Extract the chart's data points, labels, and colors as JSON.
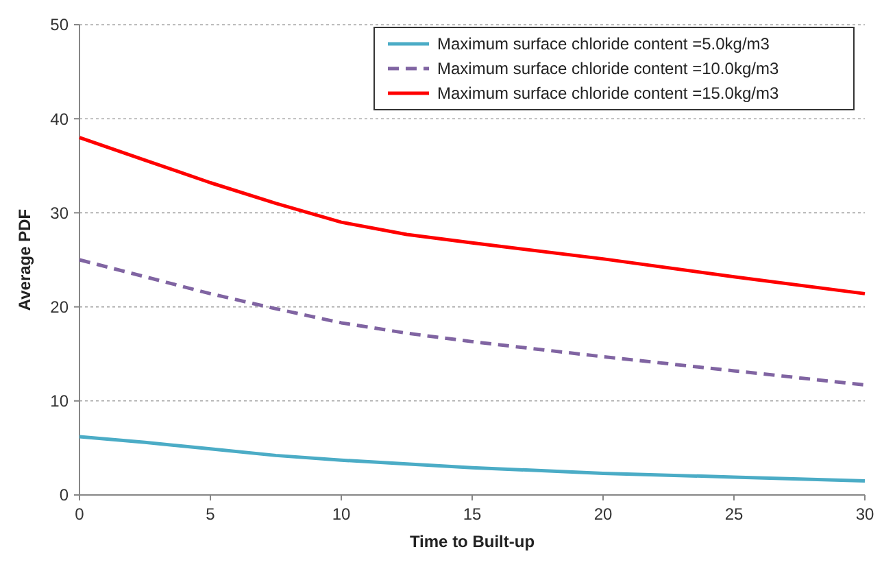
{
  "chart_data": {
    "type": "line",
    "xlabel": "Time to Built-up",
    "ylabel": "Average PDF",
    "x": [
      0,
      2.5,
      5,
      7.5,
      10,
      12.5,
      15,
      20,
      25,
      30
    ],
    "series": [
      {
        "name": "Maximum surface chloride content =5.0kg/m3",
        "color": "#4bacc6",
        "line_style": "solid",
        "values": [
          6.2,
          5.6,
          4.9,
          4.2,
          3.7,
          3.3,
          2.9,
          2.3,
          1.9,
          1.5
        ]
      },
      {
        "name": "Maximum surface chloride content =10.0kg/m3",
        "color": "#8064a2",
        "line_style": "dashed",
        "values": [
          25,
          23.2,
          21.4,
          19.8,
          18.3,
          17.2,
          16.3,
          14.7,
          13.2,
          11.7
        ]
      },
      {
        "name": "Maximum surface chloride content =15.0kg/m3",
        "color": "#ff0000",
        "line_style": "solid",
        "values": [
          38,
          35.6,
          33.2,
          31,
          29,
          27.7,
          26.8,
          25.1,
          23.2,
          21.4
        ]
      }
    ],
    "xlim": [
      0,
      30
    ],
    "xticks": [
      0,
      5,
      10,
      15,
      20,
      25,
      30
    ],
    "ylim": [
      0,
      50
    ],
    "yticks": [
      0,
      10,
      20,
      30,
      40,
      50
    ],
    "grid": "y",
    "legend": "top right",
    "marker": "none"
  }
}
